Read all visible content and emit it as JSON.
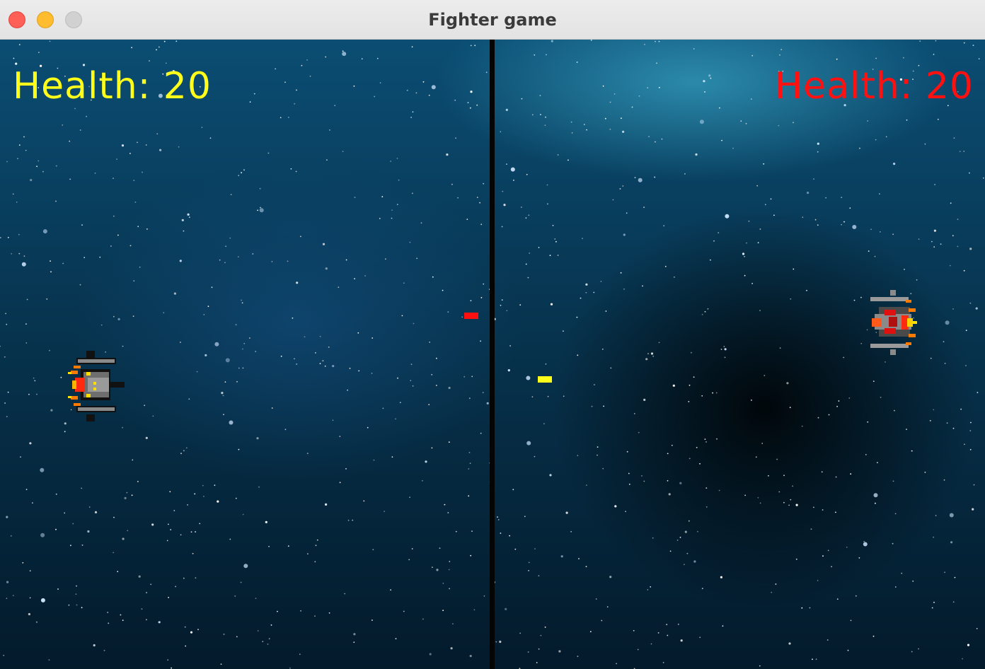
{
  "window": {
    "title": "Fighter game"
  },
  "player_left": {
    "health_text": "Health: 20",
    "health": 20,
    "color": "#ffff1a",
    "icon": "spaceship-icon-facing-right"
  },
  "player_right": {
    "health_text": "Health: 20",
    "health": 20,
    "color": "#ff1111",
    "icon": "spaceship-icon-facing-left"
  },
  "bullets": [
    {
      "owner": "right",
      "color": "#ff1010"
    },
    {
      "owner": "left",
      "color": "#ffff1a"
    }
  ]
}
